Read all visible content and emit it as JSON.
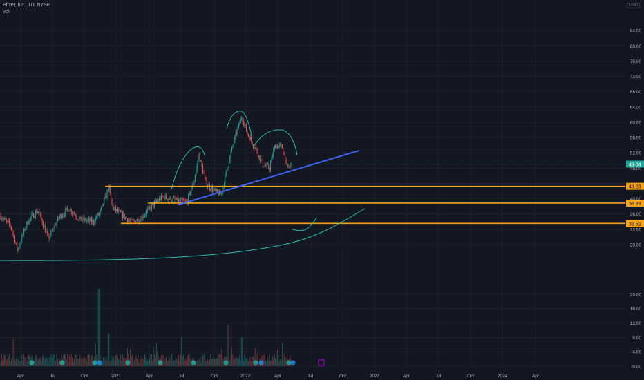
{
  "header": {
    "symbol_line": "Pfizer, Inc., 1D, NYSE",
    "volume_label": "Vol",
    "currency": "USD"
  },
  "chart_data": {
    "type": "line",
    "title": "",
    "series": [
      {
        "values": [
          [
            0,
            35.5
          ],
          [
            15,
            33
          ],
          [
            25,
            26.5
          ],
          [
            40,
            34
          ],
          [
            55,
            37
          ],
          [
            70,
            29.5
          ],
          [
            85,
            35
          ],
          [
            100,
            37.5
          ],
          [
            115,
            34.5
          ],
          [
            135,
            34
          ],
          [
            145,
            36.5
          ],
          [
            150,
            39
          ],
          [
            155,
            41.5
          ],
          [
            157,
            43.2
          ],
          [
            163,
            37.5
          ],
          [
            175,
            36
          ],
          [
            190,
            33.8
          ],
          [
            205,
            35
          ],
          [
            220,
            38.2
          ],
          [
            235,
            40.5
          ],
          [
            255,
            39.5
          ],
          [
            270,
            39
          ],
          [
            280,
            44
          ],
          [
            288,
            51.5
          ],
          [
            298,
            44
          ],
          [
            310,
            42
          ],
          [
            320,
            41
          ],
          [
            330,
            49
          ],
          [
            340,
            56
          ],
          [
            350,
            61.5
          ],
          [
            358,
            57
          ],
          [
            370,
            53
          ],
          [
            380,
            49
          ],
          [
            390,
            48
          ],
          [
            398,
            54
          ],
          [
            408,
            53.5
          ],
          [
            416,
            48
          ],
          [
            422,
            49
          ]
        ]
      }
    ],
    "price_axis": {
      "ticks": [
        "84.00",
        "80.00",
        "76.00",
        "72.00",
        "68.00",
        "64.00",
        "60.00",
        "56.00",
        "52.00",
        "48.00",
        "40.00",
        "36.00",
        "32.00",
        "28.00"
      ],
      "range": [
        24,
        88
      ]
    },
    "volume_axis": {
      "ticks": [
        "20.00",
        "16.00",
        "12.00",
        "8.00",
        "4.00",
        "0.00"
      ],
      "range": [
        0,
        24
      ],
      "unit": "M"
    },
    "time_axis": {
      "ticks": [
        "Apr",
        "Jul",
        "Oct",
        "2021",
        "Apr",
        "Jul",
        "Oct",
        "2022",
        "Apr",
        "Jul",
        "Oct",
        "2023",
        "Apr",
        "Jul",
        "Oct",
        "2024",
        "Apr"
      ]
    },
    "current_price": "49.04",
    "horizontal_levels": [
      {
        "label": "43.23",
        "value": 43.23
      },
      {
        "label": "38.83",
        "value": 38.83
      },
      {
        "label": "33.52",
        "value": 33.52
      }
    ],
    "colors": {
      "background": "#131722",
      "up": "#26a69a",
      "down": "#ef5350",
      "trendline": "#3d63f2",
      "levels": "#f5a31a",
      "annotation": "#2bbbad"
    },
    "grid": true,
    "log_scale": false
  }
}
